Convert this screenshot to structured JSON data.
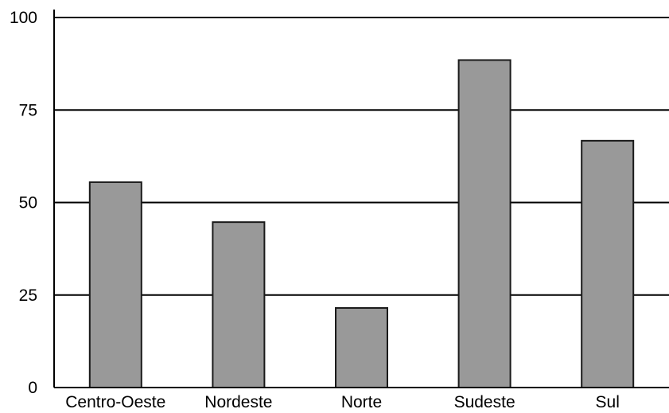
{
  "chart_data": {
    "type": "bar",
    "title": "",
    "xlabel": "",
    "ylabel": "",
    "categories": [
      "Centro-Oeste",
      "Nordeste",
      "Norte",
      "Sudeste",
      "Sul"
    ],
    "values": [
      55.5,
      44.7,
      21.5,
      88.5,
      66.7
    ],
    "ylim": [
      0,
      100
    ],
    "yticks": [
      "0",
      "25",
      "50",
      "75",
      "100"
    ],
    "grid": true,
    "legend": "none",
    "colors": {
      "bar_fill": "#999999",
      "bar_stroke": "#1a1a1a",
      "grid": "#000000",
      "text": "#000000"
    }
  }
}
